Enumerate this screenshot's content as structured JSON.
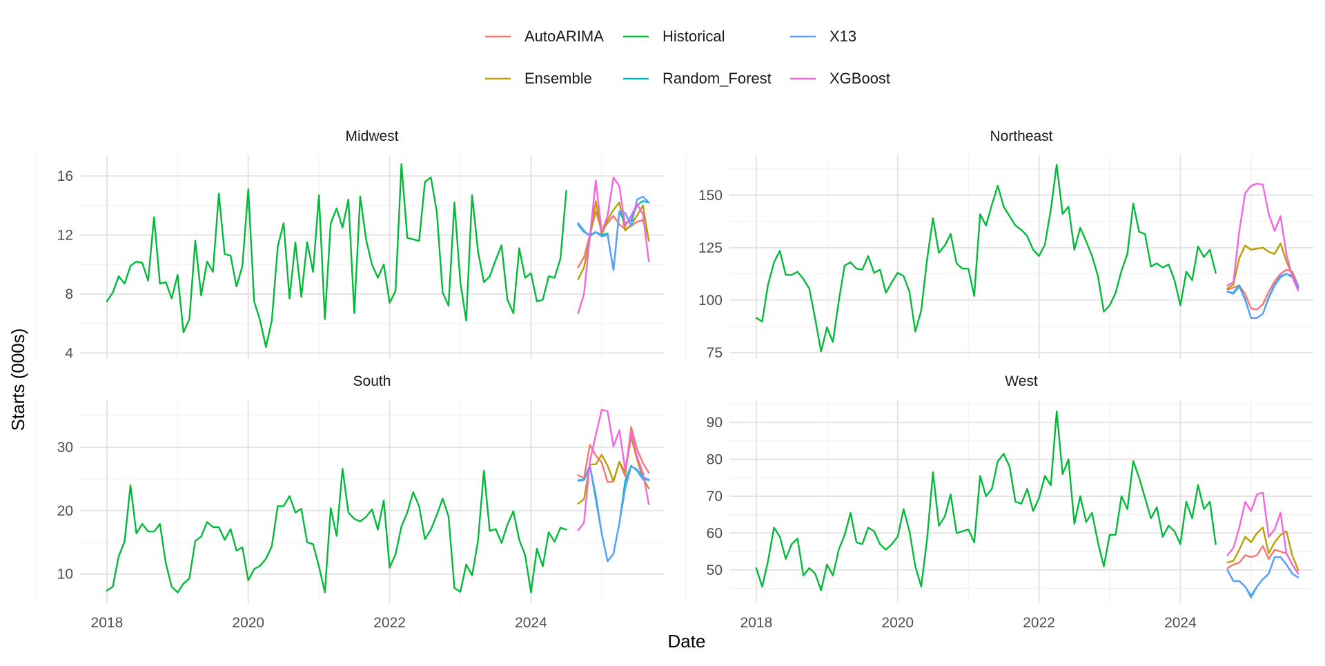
{
  "chart_data": {
    "type": "line",
    "title": "",
    "xlabel": "Date",
    "ylabel": "Starts (000s)",
    "legend_position": "top",
    "grid": true,
    "legend": [
      "AutoARIMA",
      "Historical",
      "X13",
      "Ensemble",
      "Random_Forest",
      "XGBoost"
    ],
    "colors": {
      "AutoARIMA": "#F8766D",
      "Ensemble": "#B79F00",
      "Historical": "#00BA38",
      "Random_Forest": "#00BFC4",
      "X13": "#619CFF",
      "XGBoost": "#F564E3"
    },
    "x_ticks": [
      "2018",
      "2020",
      "2022",
      "2024"
    ],
    "history_start": "2018-01",
    "forecast_start": "2024-09",
    "panels": [
      {
        "name": "Midwest",
        "y_ticks": [
          4,
          8,
          12,
          16
        ],
        "ylim": [
          3.6,
          17.4
        ],
        "series": [
          {
            "name": "Historical",
            "values": [
              7.5,
              8.1,
              9.2,
              8.7,
              9.9,
              10.2,
              10.1,
              8.9,
              13.2,
              8.7,
              8.8,
              7.7,
              9.3,
              5.4,
              6.3,
              11.6,
              7.9,
              10.2,
              9.5,
              14.8,
              10.7,
              10.6,
              8.5,
              9.9,
              15.1,
              7.5,
              6.2,
              4.4,
              6.2,
              11.2,
              12.8,
              7.7,
              11.5,
              7.8,
              11.5,
              9.5,
              14.7,
              6.3,
              12.8,
              13.8,
              12.5,
              14.4,
              6.7,
              14.6,
              11.7,
              10.0,
              9.1,
              10.0,
              7.4,
              8.2,
              16.8,
              11.8,
              11.7,
              11.6,
              15.6,
              15.9,
              13.6,
              8.1,
              7.2,
              14.2,
              8.8,
              6.2,
              14.7,
              10.9,
              8.8,
              9.2,
              10.3,
              11.3,
              7.6,
              6.7,
              11.1,
              9.1,
              9.4,
              7.5,
              7.6,
              9.2,
              9.1,
              10.4,
              15.0
            ]
          },
          {
            "name": "AutoARIMA",
            "values": [
              9.8,
              10.5,
              12.0,
              13.6,
              12.3,
              12.8,
              13.3,
              12.7,
              12.4,
              12.6,
              12.9,
              13.0,
              11.7
            ]
          },
          {
            "name": "Ensemble",
            "values": [
              9.0,
              9.8,
              11.8,
              14.3,
              12.0,
              13.0,
              13.7,
              14.2,
              12.3,
              12.7,
              13.3,
              14.0,
              11.6
            ]
          },
          {
            "name": "Random_Forest",
            "values": [
              12.7,
              12.2,
              12.0,
              12.2,
              12.0,
              12.1,
              9.6,
              13.6,
              12.8,
              13.0,
              14.0,
              14.3,
              14.2
            ]
          },
          {
            "name": "X13",
            "values": [
              12.8,
              12.3,
              11.9,
              12.2,
              11.9,
              12.0,
              9.6,
              13.6,
              13.5,
              12.6,
              14.4,
              14.6,
              14.2
            ]
          },
          {
            "name": "XGBoost",
            "values": [
              6.7,
              8.0,
              11.9,
              15.7,
              12.2,
              13.3,
              15.9,
              15.3,
              12.6,
              13.3,
              14.1,
              13.4,
              10.2
            ]
          }
        ]
      },
      {
        "name": "Northeast",
        "y_ticks": [
          75,
          100,
          125,
          150
        ],
        "ylim": [
          72,
          169
        ],
        "series": [
          {
            "name": "Historical",
            "values": [
              91.5,
              89.8,
              107.5,
              118.0,
              123.5,
              112.0,
              112.0,
              113.5,
              110.0,
              105.5,
              91.0,
              75.5,
              87.0,
              80.0,
              99.5,
              116.5,
              118.0,
              115.0,
              114.5,
              121.0,
              113.0,
              114.5,
              103.5,
              108.5,
              113.0,
              111.5,
              104.0,
              85.0,
              95.0,
              119.5,
              139.0,
              122.5,
              126.0,
              131.5,
              117.5,
              115.0,
              115.0,
              102.0,
              141.0,
              135.5,
              145.5,
              154.5,
              144.5,
              140.0,
              135.5,
              133.5,
              130.5,
              124.0,
              121.0,
              126.5,
              143.0,
              164.5,
              141.0,
              144.5,
              124.0,
              134.5,
              128.0,
              121.0,
              111.5,
              94.5,
              97.5,
              103.5,
              114.0,
              122.0,
              146.0,
              132.5,
              131.5,
              116.0,
              117.5,
              115.5,
              117.0,
              109.5,
              97.5,
              113.5,
              109.5,
              125.5,
              120.5,
              124.0,
              113.0
            ]
          },
          {
            "name": "AutoARIMA",
            "values": [
              105.0,
              106.0,
              107.0,
              103.0,
              96.0,
              95.5,
              98.0,
              104.0,
              109.0,
              112.5,
              114.5,
              113.5,
              107.0
            ]
          },
          {
            "name": "Ensemble",
            "values": [
              105.5,
              107.5,
              120.0,
              126.0,
              124.0,
              124.5,
              125.0,
              123.0,
              122.0,
              127.0,
              118.5,
              112.0,
              105.5
            ]
          },
          {
            "name": "Random_Forest",
            "values": [
              104.0,
              103.5,
              107.0,
              100.5,
              91.5,
              91.5,
              93.5,
              101.0,
              107.0,
              111.0,
              112.5,
              111.0,
              106.0
            ]
          },
          {
            "name": "X13",
            "values": [
              104.0,
              103.0,
              106.5,
              100.0,
              91.5,
              91.5,
              93.5,
              101.5,
              107.5,
              111.5,
              112.5,
              111.5,
              106.5
            ]
          },
          {
            "name": "XGBoost",
            "values": [
              107.0,
              108.5,
              133.0,
              151.0,
              154.5,
              155.5,
              155.0,
              141.0,
              133.0,
              140.0,
              122.0,
              111.0,
              104.5
            ]
          }
        ]
      },
      {
        "name": "South",
        "y_ticks": [
          10,
          20,
          30
        ],
        "ylim": [
          5.4,
          37.4
        ],
        "series": [
          {
            "name": "Historical",
            "values": [
              7.4,
              8.0,
              12.8,
              15.1,
              24.0,
              16.4,
              17.9,
              16.7,
              16.7,
              17.9,
              11.7,
              8.0,
              7.1,
              8.5,
              9.3,
              15.2,
              15.9,
              18.2,
              17.4,
              17.4,
              15.4,
              17.1,
              13.7,
              14.2,
              9.0,
              10.8,
              11.3,
              12.4,
              14.4,
              20.7,
              20.7,
              22.3,
              19.7,
              20.3,
              15.0,
              14.7,
              11.2,
              7.1,
              20.4,
              16.0,
              26.6,
              19.7,
              18.7,
              18.3,
              19.0,
              20.2,
              17.0,
              21.6,
              11.0,
              13.1,
              17.5,
              19.7,
              22.9,
              20.7,
              15.5,
              17.0,
              19.3,
              21.9,
              19.1,
              7.8,
              7.2,
              11.5,
              9.8,
              15.2,
              26.3,
              16.8,
              17.1,
              14.9,
              17.8,
              19.9,
              15.4,
              13.0,
              7.1,
              14.0,
              11.2,
              16.6,
              15.1,
              17.3,
              17.0
            ]
          },
          {
            "name": "AutoARIMA",
            "values": [
              25.6,
              25.1,
              30.4,
              28.7,
              27.6,
              24.5,
              24.6,
              27.7,
              25.4,
              33.2,
              29.7,
              27.5,
              26.0
            ]
          },
          {
            "name": "Ensemble",
            "values": [
              21.1,
              21.8,
              27.3,
              27.3,
              28.8,
              27.1,
              24.6,
              27.7,
              26.1,
              31.6,
              28.1,
              25.1,
              23.5
            ]
          },
          {
            "name": "Random_Forest",
            "values": [
              24.8,
              24.9,
              27.1,
              21.8,
              16.4,
              12.0,
              13.2,
              18.0,
              24.7,
              27.1,
              26.3,
              25.0,
              24.8
            ]
          },
          {
            "name": "X13",
            "values": [
              24.7,
              24.8,
              27.0,
              22.5,
              16.5,
              12.0,
              13.2,
              18.0,
              23.5,
              27.0,
              26.5,
              25.3,
              24.9
            ]
          },
          {
            "name": "XGBoost",
            "values": [
              16.9,
              18.1,
              27.8,
              31.9,
              35.9,
              35.7,
              30.1,
              32.7,
              26.4,
              32.4,
              28.5,
              26.0,
              21.0
            ]
          }
        ]
      },
      {
        "name": "West",
        "y_ticks": [
          50,
          60,
          70,
          80,
          90
        ],
        "ylim": [
          41,
          96
        ],
        "series": [
          {
            "name": "Historical",
            "values": [
              50.5,
              45.5,
              52.5,
              61.5,
              59.0,
              53.0,
              57.0,
              58.5,
              48.5,
              50.5,
              49.0,
              44.5,
              51.5,
              48.5,
              55.5,
              59.5,
              65.5,
              57.5,
              57.0,
              61.5,
              60.5,
              57.0,
              55.5,
              57.0,
              59.0,
              66.5,
              60.5,
              51.0,
              45.5,
              58.5,
              76.5,
              62.0,
              64.5,
              70.5,
              60.0,
              60.5,
              61.0,
              57.5,
              75.5,
              70.0,
              72.0,
              79.5,
              81.5,
              78.0,
              68.5,
              68.0,
              72.0,
              66.0,
              69.5,
              75.5,
              73.0,
              93.0,
              76.0,
              80.0,
              62.5,
              70.0,
              63.0,
              65.5,
              57.5,
              51.0,
              59.5,
              59.5,
              70.0,
              66.5,
              79.5,
              75.0,
              69.5,
              64.0,
              67.0,
              59.0,
              62.0,
              60.5,
              57.0,
              68.5,
              64.0,
              73.0,
              66.5,
              68.5,
              57.0
            ]
          },
          {
            "name": "AutoARIMA",
            "values": [
              50.5,
              51.5,
              52.0,
              54.0,
              53.5,
              54.0,
              56.5,
              53.0,
              55.5,
              55.0,
              54.5,
              51.5,
              49.0
            ]
          },
          {
            "name": "Ensemble",
            "values": [
              52.0,
              52.5,
              55.5,
              59.0,
              57.5,
              60.0,
              61.5,
              54.5,
              57.5,
              59.5,
              60.5,
              54.0,
              50.0
            ]
          },
          {
            "name": "Random_Forest",
            "values": [
              50.0,
              47.0,
              47.0,
              45.5,
              43.0,
              45.5,
              47.5,
              49.0,
              53.5,
              53.5,
              51.5,
              49.0,
              48.0
            ]
          },
          {
            "name": "X13",
            "values": [
              50.0,
              47.0,
              47.0,
              45.5,
              42.5,
              45.5,
              47.5,
              49.0,
              53.5,
              53.5,
              51.5,
              49.0,
              48.0
            ]
          },
          {
            "name": "XGBoost",
            "values": [
              54.0,
              56.0,
              61.5,
              68.5,
              66.0,
              70.5,
              71.0,
              59.0,
              61.0,
              65.5,
              54.5,
              51.5,
              49.0
            ]
          }
        ]
      }
    ]
  }
}
